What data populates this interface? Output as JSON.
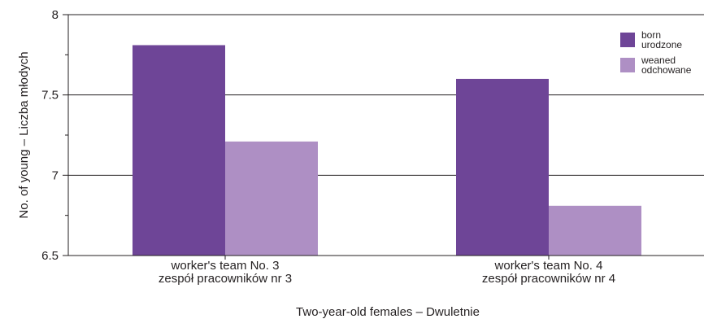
{
  "chart_data": {
    "type": "bar",
    "categories": [
      [
        "worker's team No. 3",
        "zespół pracowników nr 3"
      ],
      [
        "worker's team No. 4",
        "zespół pracowników nr 4"
      ]
    ],
    "series": [
      {
        "name": [
          "born",
          "urodzone"
        ],
        "values": [
          7.81,
          7.6
        ],
        "color": "#6e4597"
      },
      {
        "name": [
          "weaned",
          "odchowane"
        ],
        "values": [
          7.21,
          6.81
        ],
        "color": "#ae8fc4"
      }
    ],
    "ylim": [
      6.5,
      8
    ],
    "yticks": [
      "6.5",
      "7",
      "7.5",
      "8"
    ],
    "xlabel": "Two-year-old females – Dwuletnie",
    "ylabel": "No. of young – Liczba młodych",
    "grid": true,
    "legend": "top-right"
  }
}
